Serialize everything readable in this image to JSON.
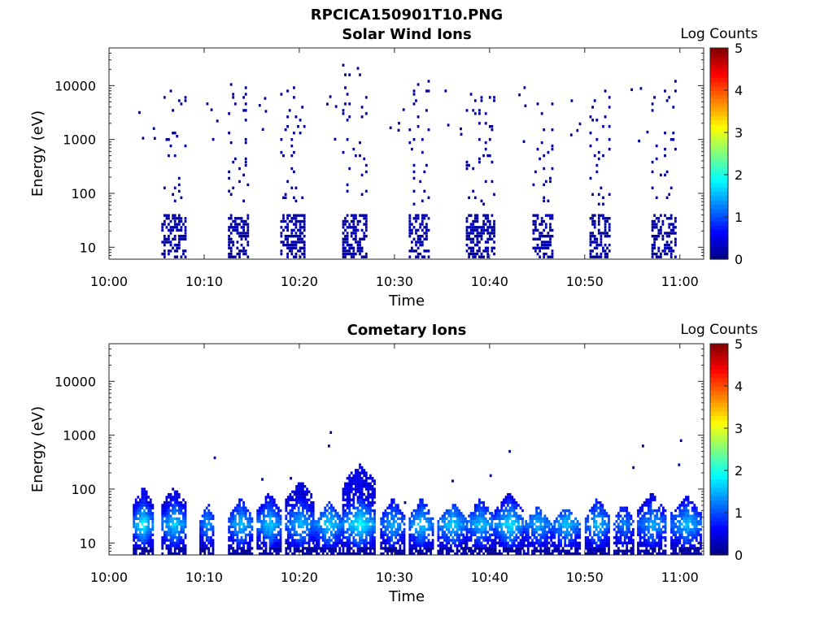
{
  "figure": {
    "title": "RPCICA150901T10.PNG"
  },
  "colorbar": {
    "label": "Log Counts",
    "ticks": [
      "0",
      "1",
      "2",
      "3",
      "4",
      "5"
    ],
    "range": [
      0,
      5
    ],
    "colormap": [
      "#00007f",
      "#0000ff",
      "#007fff",
      "#00ffff",
      "#7fff7f",
      "#ffff00",
      "#ff7f00",
      "#ff0000",
      "#7f0000"
    ]
  },
  "chart_data": [
    {
      "type": "heatmap",
      "title": "Solar Wind Ions",
      "xlabel": "Time",
      "ylabel": "Energy (eV)",
      "x_ticks": [
        "10:00",
        "10:10",
        "10:20",
        "10:30",
        "10:40",
        "10:50",
        "11:00"
      ],
      "x_tick_minutes": [
        0,
        10,
        20,
        30,
        40,
        50,
        60
      ],
      "xlim_minutes": [
        0,
        62.5
      ],
      "y_ticks": [
        "10",
        "100",
        "1000",
        "10000"
      ],
      "y_tick_values": [
        10,
        100,
        1000,
        10000
      ],
      "ylim": [
        6,
        50000
      ],
      "y_scale": "log",
      "clim": [
        0,
        5
      ],
      "bursts": [
        {
          "start_min": 5.5,
          "end_min": 8.0,
          "low_max_log": 0.4,
          "high_extent_eV": 8000
        },
        {
          "start_min": 12.5,
          "end_min": 14.5,
          "low_max_log": 0.4,
          "high_extent_eV": 11000
        },
        {
          "start_min": 18.0,
          "end_min": 20.5,
          "low_max_log": 0.4,
          "high_extent_eV": 10000
        },
        {
          "start_min": 24.5,
          "end_min": 27.0,
          "low_max_log": 0.4,
          "high_extent_eV": 25000
        },
        {
          "start_min": 31.5,
          "end_min": 33.5,
          "low_max_log": 0.4,
          "high_extent_eV": 13000
        },
        {
          "start_min": 37.5,
          "end_min": 40.5,
          "low_max_log": 0.4,
          "high_extent_eV": 9000
        },
        {
          "start_min": 44.5,
          "end_min": 46.5,
          "low_max_log": 0.4,
          "high_extent_eV": 5000
        },
        {
          "start_min": 50.5,
          "end_min": 52.5,
          "low_max_log": 0.4,
          "high_extent_eV": 9000
        },
        {
          "start_min": 57.0,
          "end_min": 59.5,
          "low_max_log": 0.4,
          "high_extent_eV": 13000
        }
      ]
    },
    {
      "type": "heatmap",
      "title": "Cometary Ions",
      "xlabel": "Time",
      "ylabel": "Energy (eV)",
      "x_ticks": [
        "10:00",
        "10:10",
        "10:20",
        "10:30",
        "10:40",
        "10:50",
        "11:00"
      ],
      "x_tick_minutes": [
        0,
        10,
        20,
        30,
        40,
        50,
        60
      ],
      "xlim_minutes": [
        0,
        62.5
      ],
      "y_ticks": [
        "10",
        "100",
        "1000",
        "10000"
      ],
      "y_tick_values": [
        10,
        100,
        1000,
        10000
      ],
      "ylim": [
        6,
        50000
      ],
      "y_scale": "log",
      "clim": [
        0,
        5
      ],
      "bursts": [
        {
          "start_min": 2.5,
          "end_min": 4.5,
          "peak_log": 1.8,
          "top_eV": 120
        },
        {
          "start_min": 5.5,
          "end_min": 8.0,
          "peak_log": 1.6,
          "top_eV": 120
        },
        {
          "start_min": 9.5,
          "end_min": 11.0,
          "peak_log": 1.3,
          "top_eV": 60
        },
        {
          "start_min": 12.5,
          "end_min": 15.0,
          "peak_log": 1.5,
          "top_eV": 70
        },
        {
          "start_min": 15.5,
          "end_min": 18.0,
          "peak_log": 1.6,
          "top_eV": 90
        },
        {
          "start_min": 18.5,
          "end_min": 21.5,
          "peak_log": 1.5,
          "top_eV": 150
        },
        {
          "start_min": 21.5,
          "end_min": 24.5,
          "peak_log": 1.6,
          "top_eV": 60
        },
        {
          "start_min": 24.5,
          "end_min": 28.0,
          "peak_log": 1.8,
          "top_eV": 300
        },
        {
          "start_min": 28.5,
          "end_min": 31.0,
          "peak_log": 1.4,
          "top_eV": 70
        },
        {
          "start_min": 31.5,
          "end_min": 34.0,
          "peak_log": 1.6,
          "top_eV": 70
        },
        {
          "start_min": 34.5,
          "end_min": 37.5,
          "peak_log": 1.6,
          "top_eV": 60
        },
        {
          "start_min": 37.5,
          "end_min": 40.5,
          "peak_log": 1.5,
          "top_eV": 70
        },
        {
          "start_min": 40.5,
          "end_min": 43.5,
          "peak_log": 1.7,
          "top_eV": 90
        },
        {
          "start_min": 43.5,
          "end_min": 46.5,
          "peak_log": 1.4,
          "top_eV": 50
        },
        {
          "start_min": 46.5,
          "end_min": 49.5,
          "peak_log": 1.5,
          "top_eV": 50
        },
        {
          "start_min": 50.0,
          "end_min": 52.5,
          "peak_log": 1.5,
          "top_eV": 70
        },
        {
          "start_min": 53.0,
          "end_min": 55.0,
          "peak_log": 1.2,
          "top_eV": 60
        },
        {
          "start_min": 55.5,
          "end_min": 58.5,
          "peak_log": 1.4,
          "top_eV": 90
        },
        {
          "start_min": 59.0,
          "end_min": 62.3,
          "peak_log": 1.5,
          "top_eV": 80
        }
      ]
    }
  ]
}
